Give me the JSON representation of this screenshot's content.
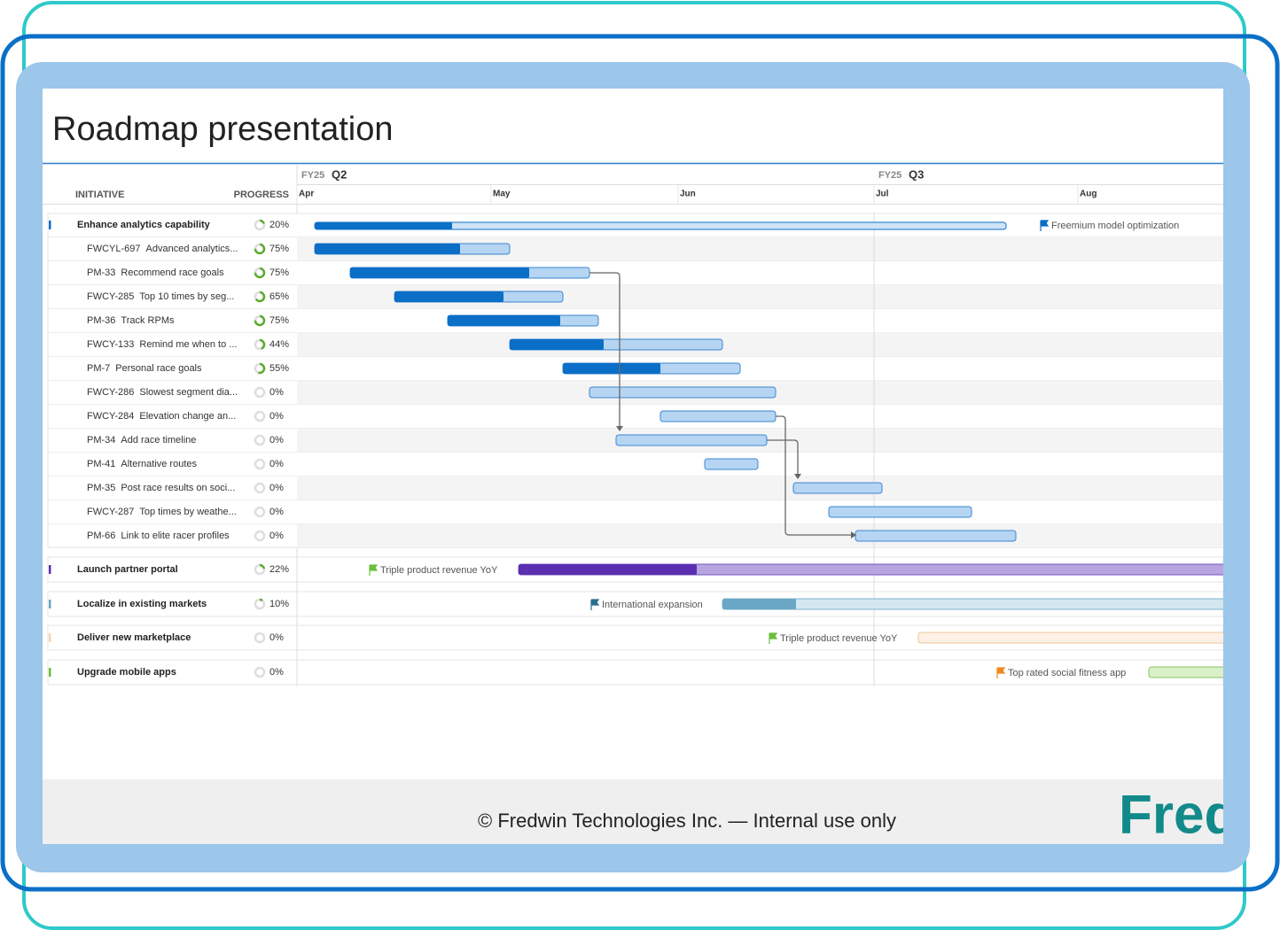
{
  "header": {
    "title": "Roadmap presentation"
  },
  "columns": {
    "initiative": "INITIATIVE",
    "progress": "PROGRESS"
  },
  "timeline": {
    "quarters": [
      {
        "fy": "FY25",
        "q": "Q2"
      },
      {
        "fy": "FY25",
        "q": "Q3"
      }
    ],
    "months": [
      "Apr",
      "May",
      "Jun",
      "Jul",
      "Aug"
    ]
  },
  "initiatives": [
    {
      "name": "Enhance analytics capability",
      "progress": {
        "value": 20,
        "label": "20%"
      },
      "milestone": "Freemium model optimization",
      "items": [
        {
          "key": "FWCYL-697",
          "name": "Advanced analytics...",
          "progress": {
            "value": 75,
            "label": "75%"
          }
        },
        {
          "key": "PM-33",
          "name": "Recommend race goals",
          "progress": {
            "value": 75,
            "label": "75%"
          }
        },
        {
          "key": "FWCY-285",
          "name": "Top 10 times by seg...",
          "progress": {
            "value": 65,
            "label": "65%"
          }
        },
        {
          "key": "PM-36",
          "name": "Track RPMs",
          "progress": {
            "value": 75,
            "label": "75%"
          }
        },
        {
          "key": "FWCY-133",
          "name": "Remind me when to ...",
          "progress": {
            "value": 44,
            "label": "44%"
          }
        },
        {
          "key": "PM-7",
          "name": "Personal race goals",
          "progress": {
            "value": 55,
            "label": "55%"
          }
        },
        {
          "key": "FWCY-286",
          "name": "Slowest segment dia...",
          "progress": {
            "value": 0,
            "label": "0%"
          }
        },
        {
          "key": "FWCY-284",
          "name": "Elevation change an...",
          "progress": {
            "value": 0,
            "label": "0%"
          }
        },
        {
          "key": "PM-34",
          "name": "Add race timeline",
          "progress": {
            "value": 0,
            "label": "0%"
          }
        },
        {
          "key": "PM-41",
          "name": "Alternative routes",
          "progress": {
            "value": 0,
            "label": "0%"
          }
        },
        {
          "key": "PM-35",
          "name": "Post race results on soci...",
          "progress": {
            "value": 0,
            "label": "0%"
          }
        },
        {
          "key": "FWCY-287",
          "name": "Top times by weathe...",
          "progress": {
            "value": 0,
            "label": "0%"
          }
        },
        {
          "key": "PM-66",
          "name": "Link to elite racer profiles",
          "progress": {
            "value": 0,
            "label": "0%"
          }
        }
      ]
    },
    {
      "name": "Launch partner portal",
      "progress": {
        "value": 22,
        "label": "22%"
      },
      "milestone": "Triple product revenue YoY",
      "items": []
    },
    {
      "name": "Localize in existing markets",
      "progress": {
        "value": 10,
        "label": "10%"
      },
      "milestone": "International expansion",
      "items": []
    },
    {
      "name": "Deliver new marketplace",
      "progress": {
        "value": 0,
        "label": "0%"
      },
      "milestone": "Triple product revenue YoY",
      "items": []
    },
    {
      "name": "Upgrade mobile apps",
      "progress": {
        "value": 0,
        "label": "0%"
      },
      "milestone": "Top rated social fitness app",
      "items": []
    }
  ],
  "footer": {
    "text": "© Fredwin Technologies Inc. — Internal use only",
    "logo": "Fred"
  }
}
